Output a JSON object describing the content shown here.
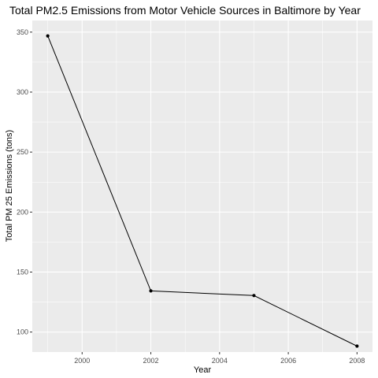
{
  "chart_data": {
    "type": "line",
    "title": "Total PM2.5 Emissions from Motor Vehicle Sources in Baltimore by Year",
    "xlabel": "Year",
    "ylabel": "Total PM 25 Emissions (tons)",
    "x": [
      1999,
      2002,
      2005,
      2008
    ],
    "series": [
      {
        "values": [
          346.82,
          134.31,
          130.43,
          88.28
        ]
      }
    ],
    "xlim": [
      1998.55,
      2008.45
    ],
    "ylim": [
      83.36,
      359.7
    ],
    "x_ticks": [
      2000,
      2002,
      2004,
      2006,
      2008
    ],
    "x_tick_labels": [
      "2000",
      "2002",
      "2004",
      "2006",
      "2008"
    ],
    "y_ticks": [
      100,
      150,
      200,
      250,
      300,
      350
    ],
    "y_tick_labels": [
      "100",
      "150",
      "200",
      "250",
      "300",
      "350"
    ],
    "grid": true,
    "legend": "none",
    "colors": {
      "panel": "#EBEBEB",
      "grid_major": "#FFFFFF",
      "line": "#000000",
      "points": "#000000",
      "tick_text": "#4D4D4D",
      "tick_marks": "#333333",
      "title_text": "#000000"
    }
  }
}
